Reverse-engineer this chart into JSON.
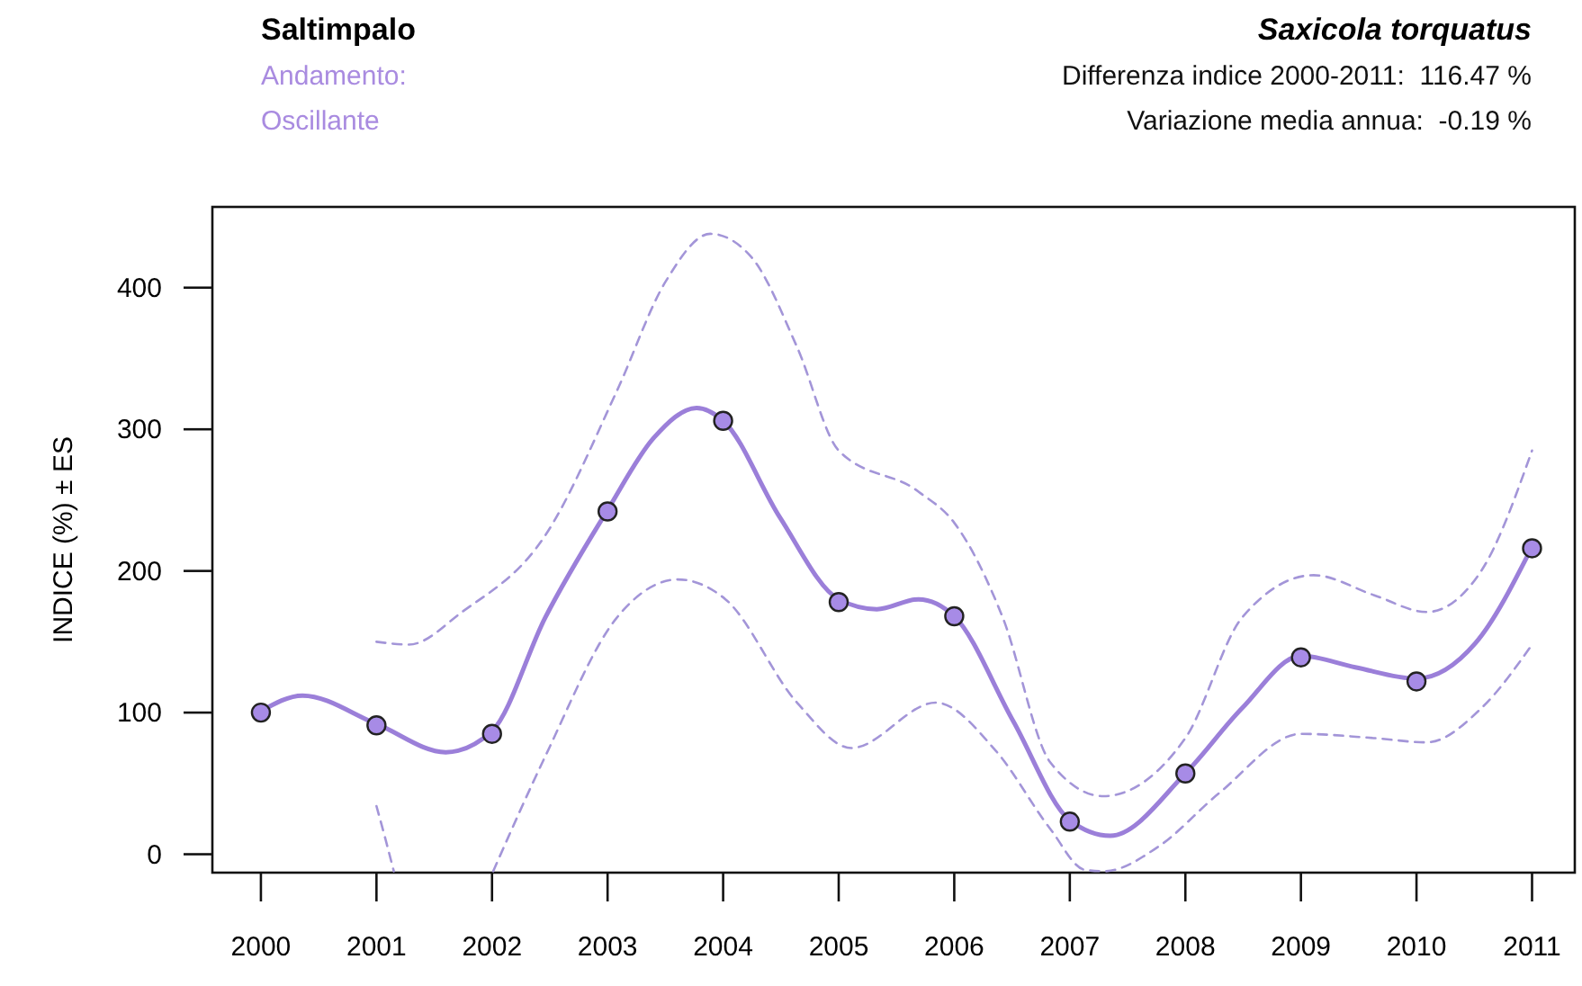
{
  "chart_data": {
    "type": "line",
    "title": "Saltimpalo",
    "subtitle": "Saxicola torquatus",
    "ylabel": "INDICE (%) ± ES",
    "annotations": [
      "Andamento:",
      "Oscillante",
      "Differenza indice 2000-2011:  116.47 %",
      "Variazione media annua:  -0.19 %"
    ],
    "xlim": [
      1999.58,
      2011.37
    ],
    "ylim": [
      -13,
      457
    ],
    "xticks": [
      2000,
      2001,
      2002,
      2003,
      2004,
      2005,
      2006,
      2007,
      2008,
      2009,
      2010,
      2011
    ],
    "yticks": [
      0,
      100,
      200,
      300,
      400
    ],
    "grid": false,
    "series": [
      {
        "color": "#9b7fd9",
        "line_style": "solid",
        "marker": "none",
        "x": [
          2000,
          2000.36,
          2001,
          2001.6,
          2002,
          2002.46,
          2003,
          2003.4,
          2003.77,
          2004,
          2004.49,
          2005,
          2005.33,
          2005.69,
          2006,
          2006.51,
          2007,
          2007.35,
          2008,
          2008.49,
          2009,
          2009.47,
          2010,
          2010.51,
          2011
        ],
        "values": [
          101,
          112,
          92,
          72,
          87,
          167,
          243,
          294,
          315,
          306,
          238,
          180,
          173,
          180,
          168,
          94,
          24,
          13,
          57,
          103,
          140,
          132,
          124,
          149,
          217
        ]
      },
      {
        "color": "#a395d8",
        "line_style": "dashed",
        "marker": "none",
        "x": [
          2001,
          2001.28,
          2001.74,
          2002.46,
          2003.08,
          2003.5,
          2003.89,
          2004.24,
          2004.64,
          2005,
          2005.69,
          2006,
          2006.42,
          2006.83,
          2007.29,
          2008,
          2008.49,
          2009.11,
          2009.63,
          2010.09,
          2010.56,
          2011
        ],
        "values": [
          150,
          148,
          171,
          225,
          327,
          404,
          438,
          422,
          358,
          285,
          256,
          234,
          167,
          65,
          41,
          82,
          167,
          197,
          183,
          171,
          200,
          285
        ]
      },
      {
        "color": "#a395d8",
        "line_style": "dashed",
        "marker": "none",
        "x": [
          2001,
          2001.08,
          2001.15,
          2001.6,
          2002.01,
          2002.46,
          2003.08,
          2003.61,
          2004.02,
          2004.64,
          2005.11,
          2005.84,
          2006.36,
          2006.83,
          2007.13,
          2007.3,
          2007.76,
          2008.29,
          2009,
          2009.63,
          2010.09,
          2010.56,
          2011
        ],
        "values": [
          34,
          10,
          -12,
          null,
          -12,
          69,
          167,
          194,
          180,
          107,
          75,
          107,
          73,
          18,
          -11,
          -12,
          5,
          43,
          85,
          82,
          79,
          103,
          148
        ]
      },
      {
        "type": "scatter",
        "color": "#a78be6",
        "marker": "circle",
        "x": [
          2000,
          2001,
          2002,
          2003,
          2004,
          2005,
          2006,
          2007,
          2008,
          2009,
          2010,
          2011
        ],
        "values": [
          100,
          91,
          85,
          242,
          306,
          178,
          168,
          23,
          57,
          139,
          122,
          216
        ]
      }
    ]
  }
}
